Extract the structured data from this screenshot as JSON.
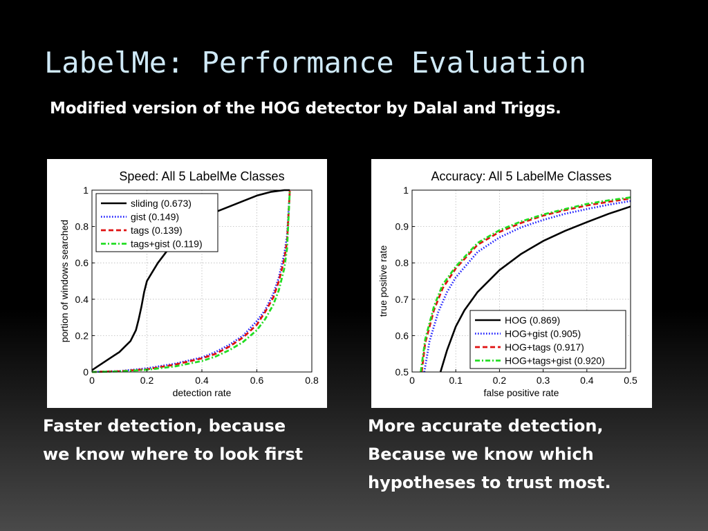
{
  "slide": {
    "title": "LabelMe: Performance Evaluation",
    "subtitle": "Modified version of the HOG detector by Dalal and Triggs.",
    "caption_left": [
      "Faster detection, because",
      "we know where to look first"
    ],
    "caption_right": [
      "More accurate detection,",
      "Because we know which",
      "hypotheses to trust most."
    ]
  },
  "chart_data": [
    {
      "type": "line",
      "title": "Speed: All 5 LabelMe Classes",
      "xlabel": "detection rate",
      "ylabel": "portion of windows searched",
      "xlim": [
        0,
        0.8
      ],
      "ylim": [
        0,
        1
      ],
      "xticks": [
        "0",
        "0.2",
        "0.4",
        "0.6",
        "0.8"
      ],
      "yticks": [
        "0",
        "0.2",
        "0.4",
        "0.6",
        "0.8",
        "1"
      ],
      "grid": true,
      "legend": "top-left",
      "series": [
        {
          "name": "sliding (0.673)",
          "color": "#000000",
          "style": "solid",
          "x": [
            0,
            0.02,
            0.05,
            0.08,
            0.1,
            0.12,
            0.14,
            0.16,
            0.17,
            0.18,
            0.19,
            0.2,
            0.22,
            0.24,
            0.26,
            0.28,
            0.3,
            0.33,
            0.36,
            0.4,
            0.45,
            0.5,
            0.55,
            0.6,
            0.65,
            0.7,
            0.72
          ],
          "y": [
            0.01,
            0.03,
            0.06,
            0.09,
            0.11,
            0.14,
            0.17,
            0.23,
            0.29,
            0.36,
            0.44,
            0.5,
            0.55,
            0.6,
            0.64,
            0.68,
            0.72,
            0.76,
            0.8,
            0.84,
            0.88,
            0.91,
            0.94,
            0.97,
            0.99,
            1.0,
            1.0
          ]
        },
        {
          "name": "gist (0.149)",
          "color": "#1f1fff",
          "style": "dotted",
          "x": [
            0,
            0.1,
            0.2,
            0.3,
            0.4,
            0.45,
            0.5,
            0.55,
            0.6,
            0.63,
            0.66,
            0.68,
            0.7,
            0.71,
            0.72
          ],
          "y": [
            0,
            0.005,
            0.02,
            0.045,
            0.08,
            0.11,
            0.15,
            0.2,
            0.28,
            0.34,
            0.43,
            0.52,
            0.65,
            0.75,
            1.0
          ]
        },
        {
          "name": "tags (0.139)",
          "color": "#e01010",
          "style": "dashed",
          "x": [
            0,
            0.1,
            0.2,
            0.3,
            0.4,
            0.45,
            0.5,
            0.55,
            0.6,
            0.63,
            0.66,
            0.68,
            0.7,
            0.71,
            0.72
          ],
          "y": [
            0,
            0.004,
            0.015,
            0.04,
            0.075,
            0.1,
            0.14,
            0.19,
            0.26,
            0.33,
            0.41,
            0.5,
            0.62,
            0.72,
            1.0
          ]
        },
        {
          "name": "tags+gist (0.119)",
          "color": "#22dd22",
          "style": "dashdot",
          "x": [
            0,
            0.1,
            0.2,
            0.3,
            0.4,
            0.45,
            0.5,
            0.55,
            0.6,
            0.63,
            0.66,
            0.68,
            0.7,
            0.71,
            0.72
          ],
          "y": [
            0,
            0.003,
            0.012,
            0.03,
            0.06,
            0.085,
            0.12,
            0.165,
            0.23,
            0.29,
            0.37,
            0.45,
            0.57,
            0.68,
            1.0
          ]
        }
      ]
    },
    {
      "type": "line",
      "title": "Accuracy: All 5 LabelMe Classes",
      "xlabel": "false positive rate",
      "ylabel": "true positive rate",
      "xlim": [
        0,
        0.5
      ],
      "ylim": [
        0.5,
        1
      ],
      "xticks": [
        "0",
        "0.1",
        "0.2",
        "0.3",
        "0.4",
        "0.5"
      ],
      "yticks": [
        "0.5",
        "0.6",
        "0.7",
        "0.8",
        "0.9",
        "1"
      ],
      "grid": true,
      "legend": "bottom-right",
      "series": [
        {
          "name": "HOG (0.869)",
          "color": "#000000",
          "style": "solid",
          "x": [
            0.065,
            0.08,
            0.1,
            0.12,
            0.15,
            0.2,
            0.25,
            0.3,
            0.35,
            0.4,
            0.45,
            0.5
          ],
          "y": [
            0.5,
            0.56,
            0.625,
            0.67,
            0.72,
            0.78,
            0.825,
            0.86,
            0.888,
            0.912,
            0.935,
            0.955
          ]
        },
        {
          "name": "HOG+gist (0.905)",
          "color": "#1f1fff",
          "style": "dotted",
          "x": [
            0.028,
            0.04,
            0.06,
            0.08,
            0.1,
            0.15,
            0.2,
            0.25,
            0.3,
            0.35,
            0.4,
            0.45,
            0.5
          ],
          "y": [
            0.5,
            0.585,
            0.665,
            0.72,
            0.76,
            0.83,
            0.87,
            0.898,
            0.918,
            0.935,
            0.948,
            0.96,
            0.97
          ]
        },
        {
          "name": "HOG+tags (0.917)",
          "color": "#e01010",
          "style": "dashed",
          "x": [
            0.022,
            0.03,
            0.05,
            0.07,
            0.1,
            0.15,
            0.2,
            0.25,
            0.3,
            0.35,
            0.4,
            0.45,
            0.5
          ],
          "y": [
            0.5,
            0.58,
            0.67,
            0.73,
            0.785,
            0.85,
            0.885,
            0.91,
            0.93,
            0.945,
            0.958,
            0.968,
            0.977
          ]
        },
        {
          "name": "HOG+tags+gist (0.920)",
          "color": "#22dd22",
          "style": "dashdot",
          "x": [
            0.02,
            0.03,
            0.05,
            0.07,
            0.1,
            0.15,
            0.2,
            0.25,
            0.3,
            0.35,
            0.4,
            0.45,
            0.5
          ],
          "y": [
            0.5,
            0.59,
            0.68,
            0.74,
            0.79,
            0.855,
            0.89,
            0.914,
            0.933,
            0.948,
            0.962,
            0.972,
            0.98
          ]
        }
      ]
    }
  ]
}
